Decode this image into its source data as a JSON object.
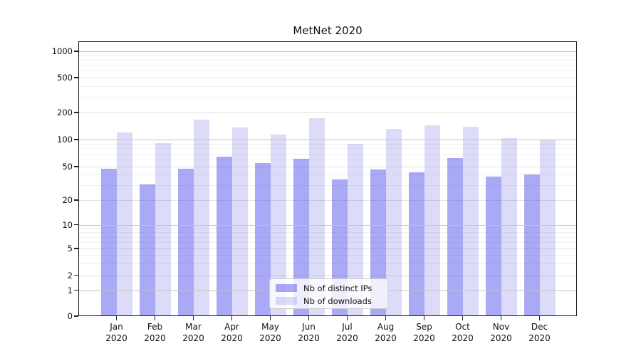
{
  "chart_data": {
    "type": "bar",
    "title": "MetNet 2020",
    "categories": [
      {
        "label": "Jan",
        "sublabel": "2020"
      },
      {
        "label": "Feb",
        "sublabel": "2020"
      },
      {
        "label": "Mar",
        "sublabel": "2020"
      },
      {
        "label": "Apr",
        "sublabel": "2020"
      },
      {
        "label": "May",
        "sublabel": "2020"
      },
      {
        "label": "Jun",
        "sublabel": "2020"
      },
      {
        "label": "Jul",
        "sublabel": "2020"
      },
      {
        "label": "Aug",
        "sublabel": "2020"
      },
      {
        "label": "Sep",
        "sublabel": "2020"
      },
      {
        "label": "Oct",
        "sublabel": "2020"
      },
      {
        "label": "Nov",
        "sublabel": "2020"
      },
      {
        "label": "Dec",
        "sublabel": "2020"
      }
    ],
    "series": [
      {
        "name": "Nb of distinct IPs",
        "values": [
          47,
          31,
          47,
          64,
          55,
          61,
          35,
          46,
          43,
          62,
          38,
          40
        ]
      },
      {
        "name": "Nb of downloads",
        "values": [
          120,
          92,
          168,
          136,
          114,
          172,
          90,
          132,
          143,
          139,
          103,
          99
        ]
      }
    ],
    "yscale": "log-with-zero",
    "ylim": [
      0,
      1000
    ],
    "y_ticks": [
      0,
      1,
      2,
      5,
      10,
      20,
      50,
      100,
      200,
      500,
      1000
    ],
    "minor_grid_values": [
      3,
      4,
      6,
      7,
      8,
      9,
      30,
      40,
      60,
      70,
      80,
      90,
      300,
      400,
      600,
      700,
      800,
      900
    ],
    "grid": true,
    "legend_position": "bottom-center-inside"
  },
  "colors": {
    "ips_bar": "rgba(64,64,233,0.45)",
    "downloads_bar": "rgba(80,80,220,0.2)",
    "grid_decade": "#c2c2c2",
    "grid_labeled": "#e2e2e2",
    "grid_minor": "#f1f1f1",
    "spine": "#1a1a1a",
    "tick_text": "#111111"
  }
}
